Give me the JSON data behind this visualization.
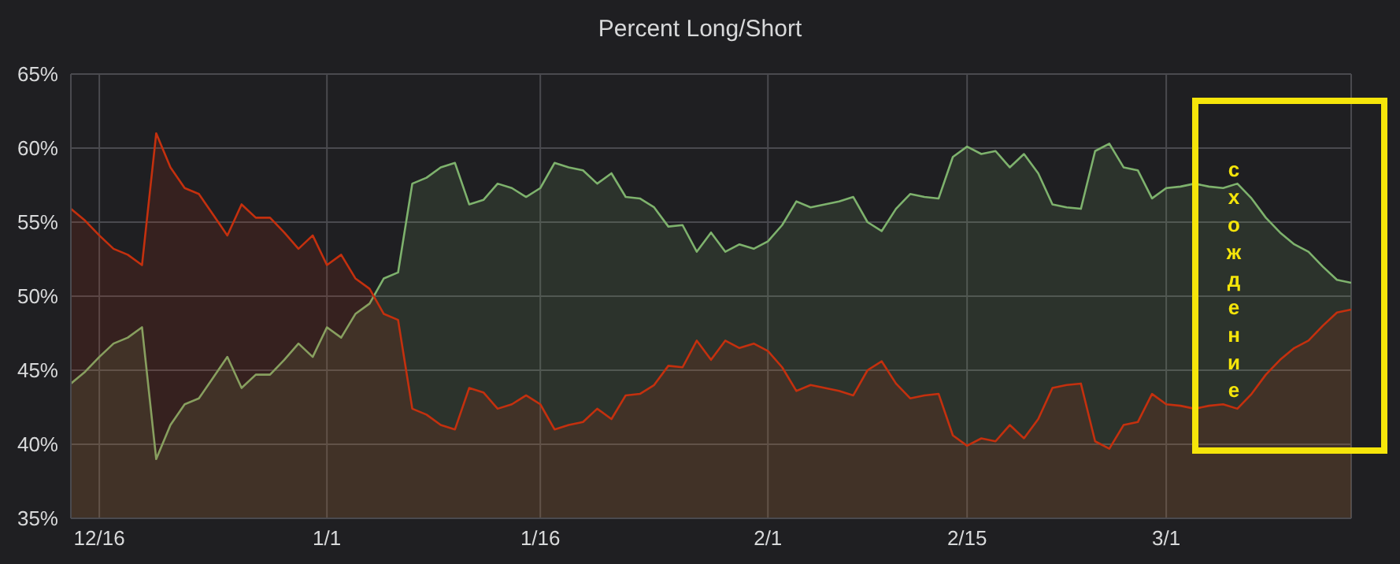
{
  "chart_data": {
    "type": "area",
    "title": "Percent Long/Short",
    "categories": [
      null,
      null,
      "12/16",
      null,
      null,
      null,
      null,
      null,
      null,
      null,
      null,
      null,
      null,
      null,
      null,
      null,
      null,
      null,
      "1/1",
      null,
      null,
      null,
      null,
      null,
      null,
      null,
      null,
      null,
      null,
      null,
      null,
      null,
      null,
      "1/16",
      null,
      null,
      null,
      null,
      null,
      null,
      null,
      null,
      null,
      null,
      null,
      null,
      null,
      null,
      null,
      "2/1",
      null,
      null,
      null,
      null,
      null,
      null,
      null,
      null,
      null,
      null,
      null,
      null,
      null,
      "2/15",
      null,
      null,
      null,
      null,
      null,
      null,
      null,
      null,
      null,
      null,
      null,
      null,
      null,
      "3/1",
      null,
      null,
      null,
      null,
      null,
      null,
      null,
      null,
      null,
      null,
      null,
      null,
      null
    ],
    "series": [
      {
        "color": "#7eb26d",
        "values": [
          44.1,
          44.9,
          45.9,
          46.8,
          47.2,
          47.9,
          39.0,
          41.3,
          42.7,
          43.1,
          44.5,
          45.9,
          43.8,
          44.7,
          44.7,
          45.7,
          46.8,
          45.9,
          47.9,
          47.2,
          48.8,
          49.5,
          51.2,
          51.6,
          57.6,
          58.0,
          58.7,
          59.0,
          56.2,
          56.5,
          57.6,
          57.3,
          56.7,
          57.3,
          59.0,
          58.7,
          58.5,
          57.6,
          58.3,
          56.7,
          56.6,
          56.0,
          54.7,
          54.8,
          53.0,
          54.3,
          53.0,
          53.5,
          53.2,
          53.7,
          54.8,
          56.4,
          56.0,
          56.2,
          56.4,
          56.7,
          55.0,
          54.4,
          55.9,
          56.9,
          56.7,
          56.6,
          59.4,
          60.1,
          59.6,
          59.8,
          58.7,
          59.6,
          58.3,
          56.2,
          56.0,
          55.9,
          59.8,
          60.3,
          58.7,
          58.5,
          56.6,
          57.3,
          57.4,
          57.6,
          57.4,
          57.3,
          57.6,
          56.6,
          55.3,
          54.3,
          53.5,
          53.0,
          52.0,
          51.1,
          50.9
        ]
      },
      {
        "color": "#c4300e",
        "values": [
          55.9,
          55.1,
          54.1,
          53.2,
          52.8,
          52.1,
          61.0,
          58.7,
          57.3,
          56.9,
          55.5,
          54.1,
          56.2,
          55.3,
          55.3,
          54.3,
          53.2,
          54.1,
          52.1,
          52.8,
          51.2,
          50.5,
          48.8,
          48.4,
          42.4,
          42.0,
          41.3,
          41.0,
          43.8,
          43.5,
          42.4,
          42.7,
          43.3,
          42.7,
          41.0,
          41.3,
          41.5,
          42.4,
          41.7,
          43.3,
          43.4,
          44.0,
          45.3,
          45.2,
          47.0,
          45.7,
          47.0,
          46.5,
          46.8,
          46.3,
          45.2,
          43.6,
          44.0,
          43.8,
          43.6,
          43.3,
          45.0,
          45.6,
          44.1,
          43.1,
          43.3,
          43.4,
          40.6,
          39.9,
          40.4,
          40.2,
          41.3,
          40.4,
          41.7,
          43.8,
          44.0,
          44.1,
          40.2,
          39.7,
          41.3,
          41.5,
          43.4,
          42.7,
          42.6,
          42.4,
          42.6,
          42.7,
          42.4,
          43.4,
          44.7,
          45.7,
          46.5,
          47.0,
          48.0,
          48.9,
          49.1
        ]
      }
    ],
    "ylim": [
      35,
      65
    ],
    "yticks": [
      {
        "value": 35,
        "label": "35%"
      },
      {
        "value": 40,
        "label": "40%"
      },
      {
        "value": 45,
        "label": "45%"
      },
      {
        "value": 50,
        "label": "50%"
      },
      {
        "value": 55,
        "label": "55%"
      },
      {
        "value": 60,
        "label": "60%"
      },
      {
        "value": 65,
        "label": "65%"
      }
    ],
    "grid": true,
    "annotations": [
      "схождение"
    ]
  }
}
